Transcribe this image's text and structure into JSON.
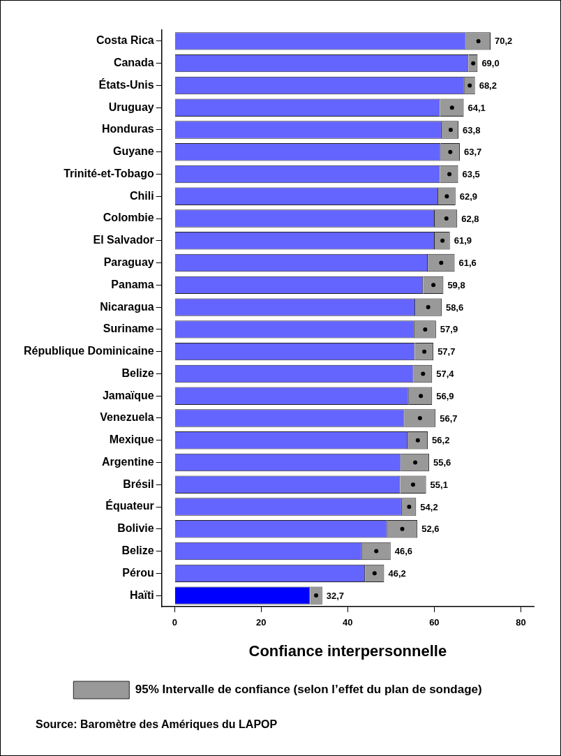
{
  "chart_data": {
    "type": "bar",
    "orientation": "horizontal",
    "stacked": true,
    "xlabel": "Confiance interpersonnelle",
    "categories": [
      "Costa Rica",
      "Canada",
      "États-Unis",
      "Uruguay",
      "Honduras",
      "Guyane",
      "Trinité-et-Tobago",
      "Chili",
      "Colombie",
      "El Salvador",
      "Paraguay",
      "Panama",
      "Nicaragua",
      "Suriname",
      "République Dominicaine",
      "Belize",
      "Jamaïque",
      "Venezuela",
      "Mexique",
      "Argentine",
      "Brésil",
      "Équateur",
      "Bolivie",
      "Belize",
      "Pérou",
      "Haïti"
    ],
    "series": [
      {
        "colors": [
          "#6464ff",
          "#6464ff",
          "#6464ff",
          "#6464ff",
          "#6464ff",
          "#6464ff",
          "#6464ff",
          "#6464ff",
          "#6464ff",
          "#6464ff",
          "#6464ff",
          "#6464ff",
          "#6464ff",
          "#6464ff",
          "#6464ff",
          "#6464ff",
          "#6464ff",
          "#6464ff",
          "#6464ff",
          "#6464ff",
          "#6464ff",
          "#6464ff",
          "#6464ff",
          "#6464ff",
          "#6464ff",
          "#0000ff"
        ],
        "values": [
          67.3,
          67.9,
          67.0,
          61.3,
          61.7,
          61.5,
          61.3,
          60.9,
          60.1,
          60.1,
          58.5,
          57.4,
          55.6,
          55.4,
          55.5,
          55.2,
          54.1,
          53.1,
          53.8,
          52.3,
          52.1,
          52.5,
          49.1,
          43.3,
          44.0,
          31.3
        ]
      },
      {
        "name": "95% Intervalle de confiance (selon l’effet du plan de sondage)",
        "color": "#999999",
        "values": [
          5.7,
          2.1,
          2.4,
          5.5,
          3.9,
          4.4,
          4.2,
          4.0,
          5.2,
          3.5,
          6.2,
          4.7,
          6.1,
          5.0,
          4.3,
          4.3,
          5.4,
          7.2,
          4.7,
          6.5,
          6.0,
          3.3,
          7.0,
          6.6,
          4.4,
          2.8
        ]
      },
      {
        "type": "scatter",
        "color": "#000000",
        "values": [
          70.2,
          69.0,
          68.2,
          64.1,
          63.8,
          63.7,
          63.5,
          62.9,
          62.8,
          61.9,
          61.6,
          59.8,
          58.6,
          57.9,
          57.7,
          57.4,
          56.9,
          56.7,
          56.2,
          55.6,
          55.1,
          54.2,
          52.6,
          46.6,
          46.2,
          32.7
        ],
        "value_labels": [
          "70,2",
          "69,0",
          "68,2",
          "64,1",
          "63,8",
          "63,7",
          "63,5",
          "62,9",
          "62,8",
          "61,9",
          "61,6",
          "59,8",
          "58,6",
          "57,9",
          "57,7",
          "57,4",
          "56,9",
          "56,7",
          "56,2",
          "55,6",
          "55,1",
          "54,2",
          "52,6",
          "46,6",
          "46,2",
          "32,7"
        ]
      }
    ],
    "marker": "circle",
    "legend": "bottom",
    "xlim": [
      -3,
      83
    ],
    "xticks": [
      0,
      20,
      40,
      60,
      80
    ],
    "grid": false,
    "annotations": [
      "Source: Baromètre des Amériques du LAPOP"
    ]
  }
}
